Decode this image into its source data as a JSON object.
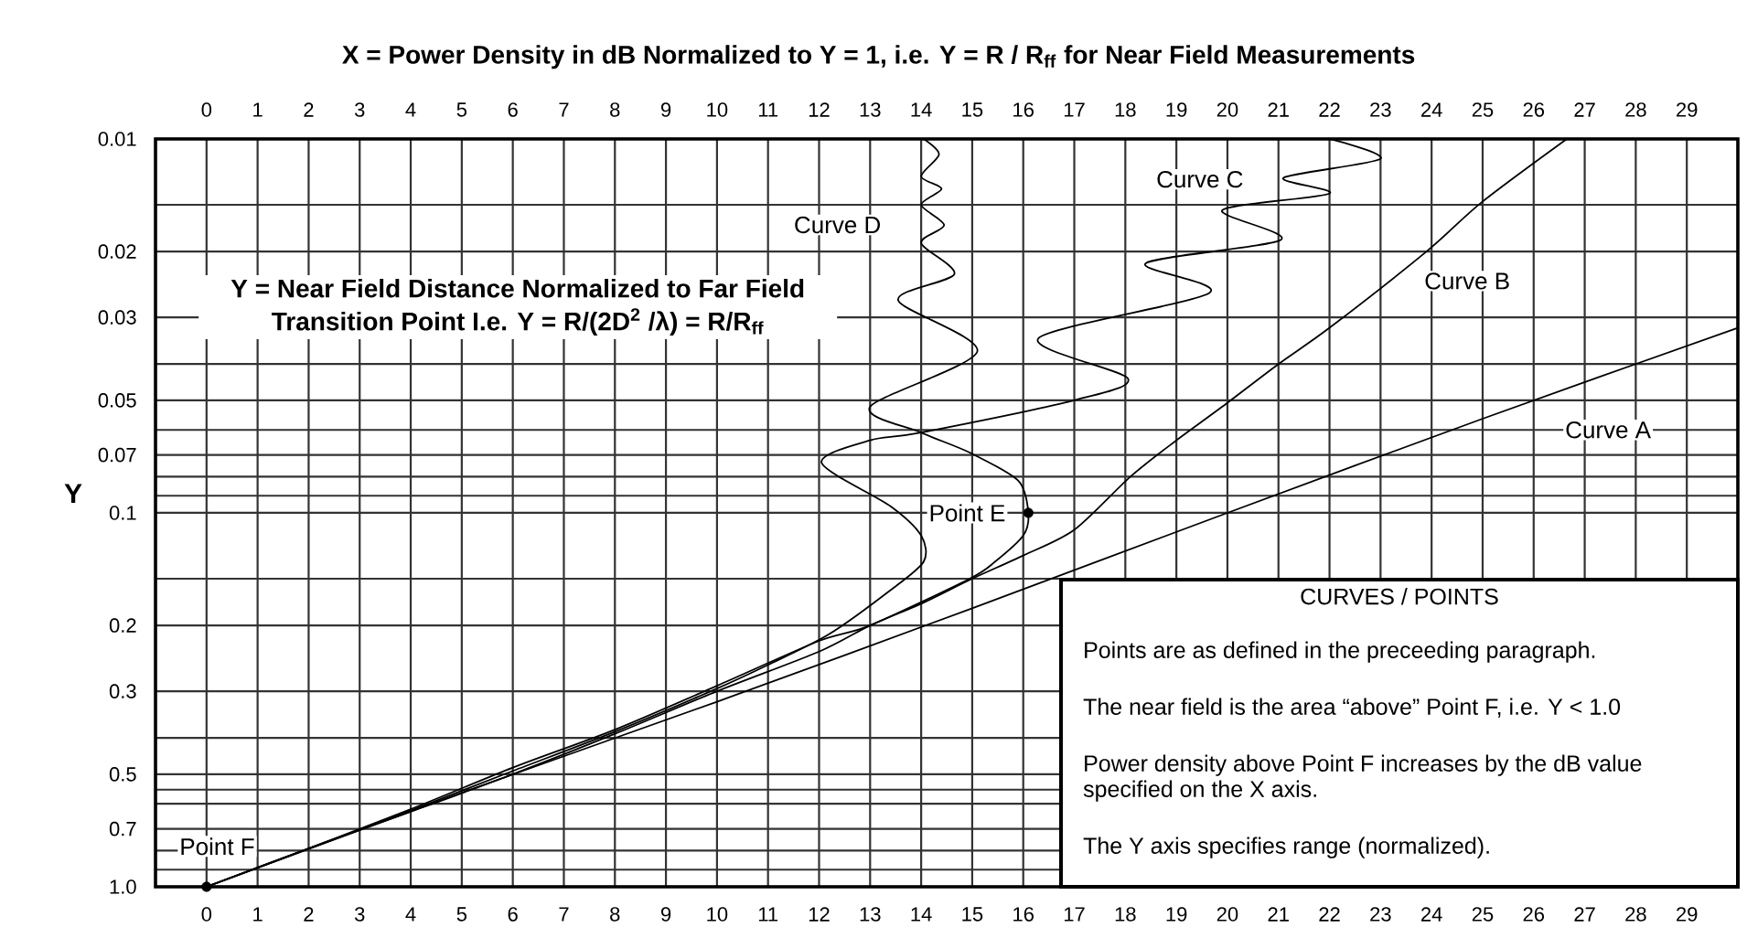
{
  "chart_data": [
    {
      "type": "line",
      "title": "X = Power Density in dB Normalized to Y = 1, i.e. Y = R / R$_{ff}$ for Near Field Measurements",
      "ylabel": "Y",
      "annotations": [
        "Y = Near Field Distance Normalized to Far Field Transition Point I.e. Y = R/(2D$^{2}$ /λ) = R/R$_{ff}$",
        "Curve A",
        "Curve B",
        "Curve C",
        "Curve D",
        "Point E",
        "Point F"
      ],
      "xlim": [
        -1,
        30
      ],
      "xticks": [
        0,
        1,
        2,
        3,
        4,
        5,
        6,
        7,
        8,
        9,
        10,
        11,
        12,
        13,
        14,
        15,
        16,
        17,
        18,
        19,
        20,
        21,
        22,
        23,
        24,
        25,
        26,
        27,
        28,
        29
      ],
      "x2lim": [
        -1,
        30
      ],
      "x2ticks": [
        0,
        1,
        2,
        3,
        4,
        5,
        6,
        7,
        8,
        9,
        10,
        11,
        12,
        13,
        14,
        15,
        16,
        17,
        18,
        19,
        20,
        21,
        22,
        23,
        24,
        25,
        26,
        27,
        28,
        29
      ],
      "ylim": [
        1,
        0.01
      ],
      "yticks": [
        0.01,
        {
          "value": 0.015,
          "label": null
        },
        0.02,
        0.03,
        {
          "value": 0.04,
          "label": null
        },
        0.05,
        {
          "value": 0.06,
          "label": null
        },
        0.07,
        {
          "value": 0.08,
          "label": null
        },
        {
          "value": 0.09,
          "label": null
        },
        0.1,
        {
          "value": 0.15,
          "label": null
        },
        0.2,
        0.3,
        {
          "value": 0.4,
          "label": null
        },
        0.5,
        {
          "value": 0.55,
          "label": null
        },
        {
          "value": 0.6,
          "label": null
        },
        0.7,
        {
          "value": 0.8,
          "label": null
        },
        {
          "value": 0.9,
          "label": null
        },
        {
          "value": 1,
          "label": "1.0"
        }
      ],
      "log": "y",
      "grid": true,
      "series": [
        {
          "color": "#000000",
          "x": [
            0,
            5,
            10,
            15,
            20,
            25,
            30
          ],
          "values": [
            1,
            0.56,
            0.32,
            0.18,
            0.1,
            0.056,
            0.032
          ]
        },
        {
          "color": "#000000",
          "x": [
            0,
            2,
            4,
            6,
            8,
            10,
            12,
            13,
            14,
            15,
            16,
            17,
            18.1,
            19,
            19.9,
            21,
            22,
            23.9,
            25,
            26.65
          ],
          "values": [
            1,
            0.79,
            0.63,
            0.5,
            0.39,
            0.3,
            0.235,
            0.2,
            0.175,
            0.15,
            0.13,
            0.111,
            0.08,
            0.064,
            0.052,
            0.04,
            0.032,
            0.02,
            0.0147,
            0.01
          ]
        },
        {
          "color": "#000000",
          "x": [
            0,
            2,
            4,
            6,
            8,
            10,
            11,
            12.2,
            13.4,
            14.05,
            14,
            13.4,
            12.05,
            13,
            14,
            17,
            18.05,
            16.3,
            19.65,
            18.4,
            21.05,
            19.9,
            22,
            21.1,
            23,
            22
          ],
          "values": [
            1,
            0.79,
            0.625,
            0.49,
            0.385,
            0.295,
            0.255,
            0.211,
            0.161,
            0.135,
            0.115,
            0.096,
            0.0735,
            0.064,
            0.061,
            0.05,
            0.0437,
            0.0341,
            0.0258,
            0.0215,
            0.0186,
            0.0155,
            0.014,
            0.0127,
            0.0113,
            0.01
          ]
        },
        {
          "color": "#000000",
          "x": [
            0,
            2,
            4,
            6,
            8,
            10,
            12,
            13,
            14.95,
            15.45,
            16,
            16.1,
            15.9,
            14.95,
            14,
            13,
            15.1,
            13.55,
            14.65,
            14,
            14.45,
            14,
            14.4,
            14,
            14.35,
            14.05
          ],
          "values": [
            1,
            0.79,
            0.62,
            0.48,
            0.38,
            0.29,
            0.22,
            0.2,
            0.15,
            0.135,
            0.115,
            0.1,
            0.082,
            0.069,
            0.061,
            0.052,
            0.037,
            0.027,
            0.023,
            0.019,
            0.017,
            0.015,
            0.0136,
            0.0126,
            0.011,
            0.01
          ]
        },
        {
          "type": "scatter",
          "color": "#000000",
          "marker": "circle",
          "x": [
            0,
            16.1
          ],
          "values": [
            1,
            0.1
          ]
        }
      ]
    },
    {
      "type": "other",
      "title": "CURVES / POINTS",
      "annotations": [
        "Points are as defined in the preceeding paragraph.",
        "The near field is the area “above” Point F, i.e. Y < 1.0",
        "Power density above Point F increases by the dB value specified on the X axis.",
        "The Y axis specifies range (normalized)."
      ]
    }
  ]
}
